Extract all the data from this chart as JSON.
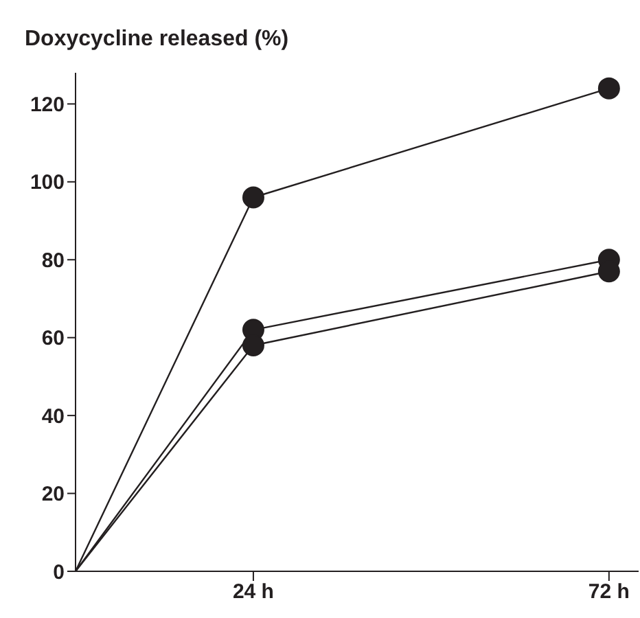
{
  "chart_data": {
    "type": "line",
    "title": "Doxycycline released (%)",
    "x": [
      0,
      24,
      72
    ],
    "series": [
      {
        "color": "#231f20",
        "values": [
          0,
          96,
          124
        ]
      },
      {
        "color": "#231f20",
        "values": [
          0,
          62,
          80
        ]
      },
      {
        "color": "#231f20",
        "values": [
          0,
          58,
          77
        ]
      }
    ],
    "xlim": [
      0,
      76
    ],
    "xticks": [
      {
        "value": 24,
        "label": "24 h"
      },
      {
        "value": 72,
        "label": "72 h"
      }
    ],
    "ylim": [
      0,
      128
    ],
    "yticks": [
      0,
      20,
      40,
      60,
      80,
      100,
      120
    ],
    "grid": false,
    "legend": false,
    "marker": "circle",
    "line_style": "solid"
  }
}
